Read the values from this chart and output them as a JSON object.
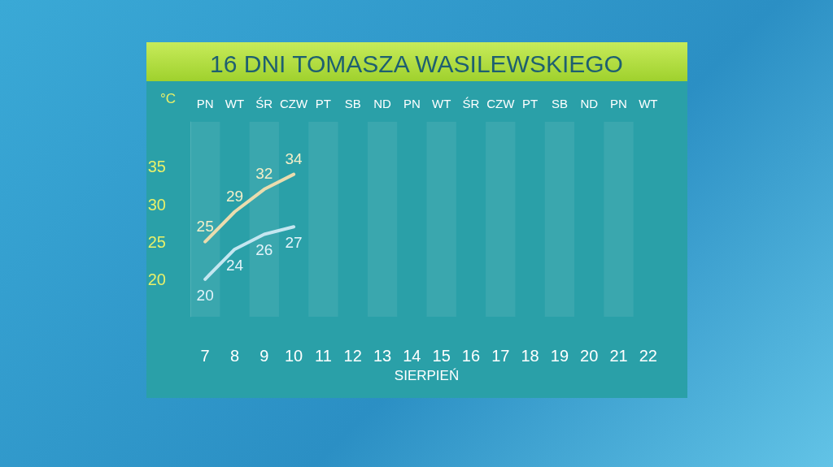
{
  "chart_data": {
    "type": "line",
    "title": "16 DNI TOMASZA WASILEWSKIEGO",
    "ylabel": "°C",
    "xlabel": "SIERPIEŃ",
    "categories": [
      "7",
      "8",
      "9",
      "10",
      "11",
      "12",
      "13",
      "14",
      "15",
      "16",
      "17",
      "18",
      "19",
      "20",
      "21",
      "22"
    ],
    "annotations": [
      "PN",
      "WT",
      "ŚR",
      "CZW",
      "PT",
      "SB",
      "ND",
      "PN",
      "WT",
      "ŚR",
      "CZW",
      "PT",
      "SB",
      "ND",
      "PN",
      "WT"
    ],
    "series": [
      {
        "color": "#eadcae",
        "values": [
          25,
          29,
          32,
          34,
          null,
          null,
          null,
          null,
          null,
          null,
          null,
          null,
          null,
          null,
          null,
          null
        ]
      },
      {
        "color": "#c4e6f0",
        "values": [
          20,
          24,
          26,
          27,
          null,
          null,
          null,
          null,
          null,
          null,
          null,
          null,
          null,
          null,
          null,
          null
        ]
      }
    ],
    "ylim": [
      15,
      41
    ],
    "yticks": [
      20,
      25,
      30,
      35
    ],
    "grid": false,
    "data_labels": true,
    "marker": "none",
    "line_style": "solid"
  }
}
